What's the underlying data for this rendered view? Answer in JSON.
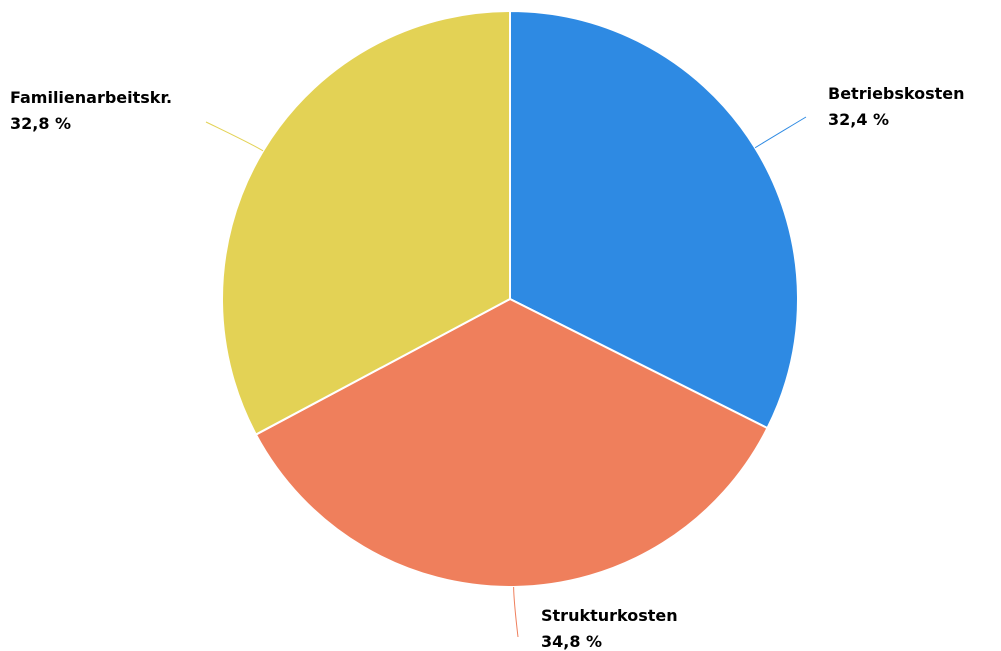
{
  "chart_data": {
    "type": "pie",
    "legend": "none",
    "slices": [
      {
        "label": "Betriebskosten",
        "value": 32.4,
        "value_label": "32,4 %",
        "color": "#2e8ae3"
      },
      {
        "label": "Strukturkosten",
        "value": 34.8,
        "value_label": "34,8 %",
        "color": "#ef7f5c"
      },
      {
        "label": "Familienarbeitskr.",
        "value": 32.8,
        "value_label": "32,8 %",
        "color": "#e3d255"
      }
    ]
  }
}
